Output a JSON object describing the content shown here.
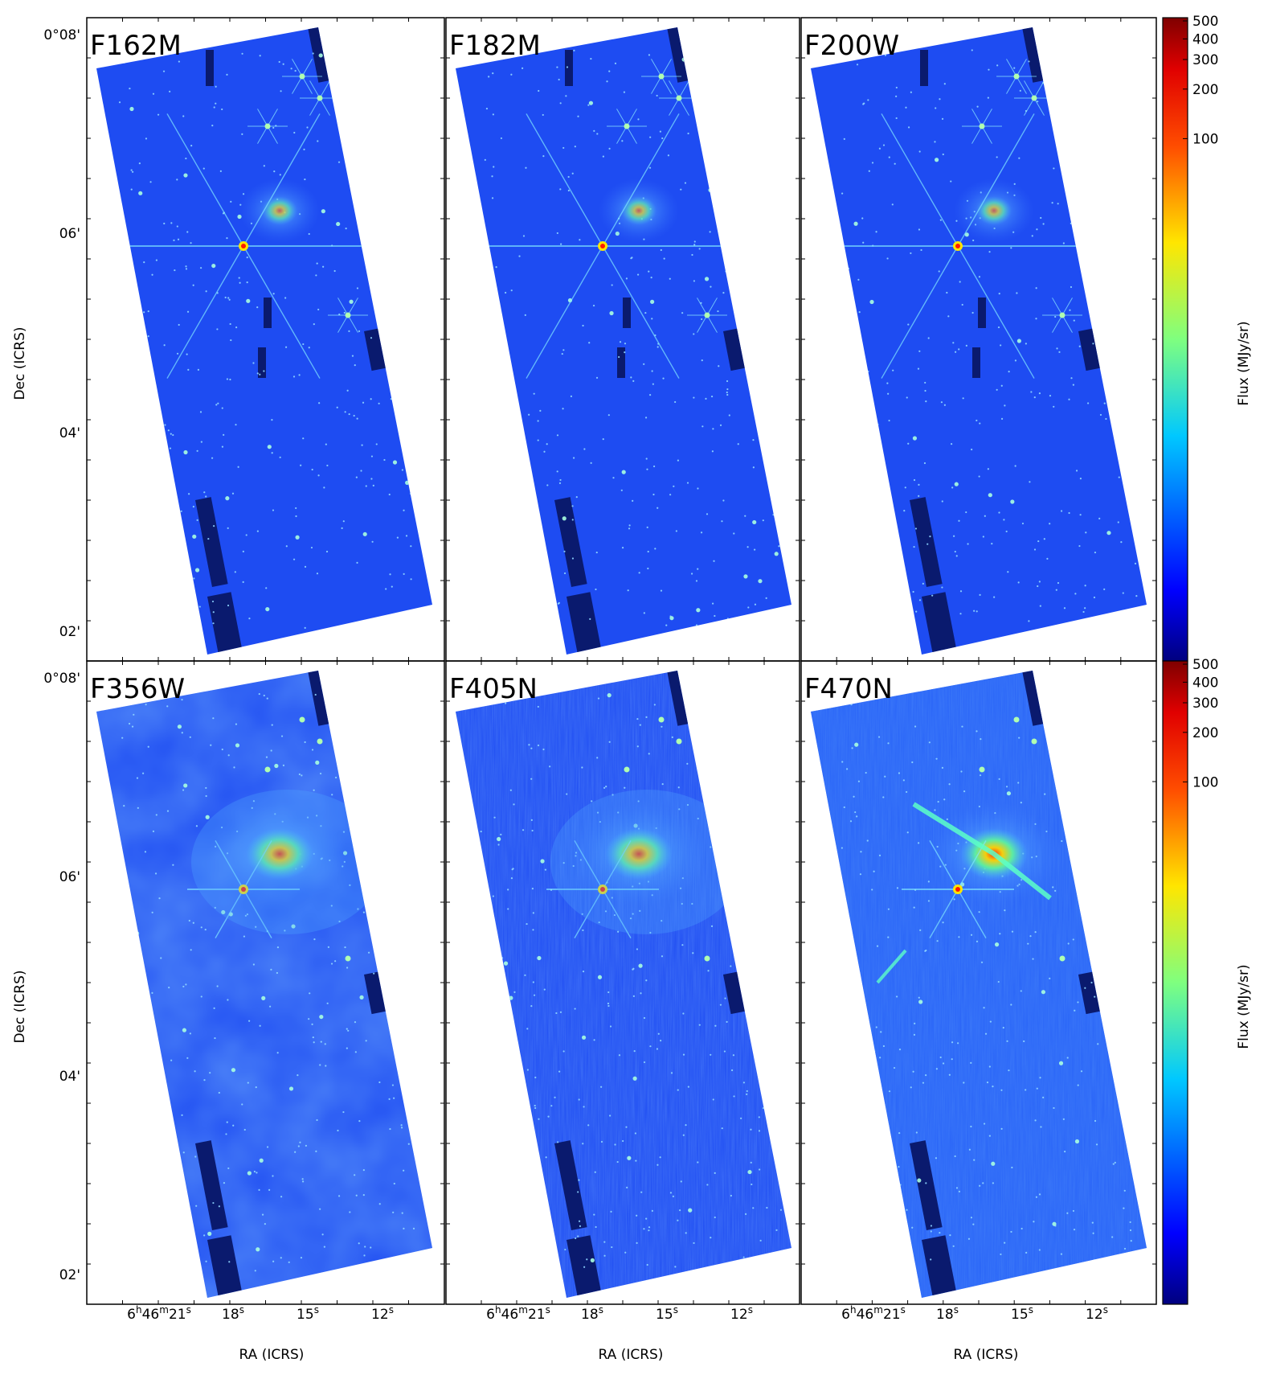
{
  "panels": [
    {
      "filter": "F162M",
      "style": "spikes"
    },
    {
      "filter": "F182M",
      "style": "spikes"
    },
    {
      "filter": "F200W",
      "style": "spikes"
    },
    {
      "filter": "F356W",
      "style": "diffuse"
    },
    {
      "filter": "F405N",
      "style": "noisy"
    },
    {
      "filter": "F470N",
      "style": "outflow"
    }
  ],
  "axes": {
    "dec_title": "Dec (ICRS)",
    "ra_title": "RA (ICRS)",
    "dec_ticks": [
      "0°08'",
      "06'",
      "04'",
      "02'"
    ],
    "ra_first_tick": {
      "h": "6",
      "hs": "h",
      "m": "46",
      "ms": "m",
      "s": "21",
      "ss": "s"
    },
    "ra_ticks": [
      {
        "v": "18",
        "s": "s"
      },
      {
        "v": "15",
        "s": "s"
      },
      {
        "v": "12",
        "s": "s"
      }
    ]
  },
  "colorbar": {
    "title": "Flux (MJy/sr)",
    "scale": "log",
    "ticks": [
      "500",
      "400",
      "300",
      "200",
      "100"
    ],
    "colormap": "jet"
  },
  "colors": {
    "background_field": "#1e4cf2",
    "gap": "#0a1a6e",
    "frame": "#000000"
  },
  "icons": {
    "sky-image": "astronomical mosaic",
    "colorbar": "jet color ramp"
  }
}
